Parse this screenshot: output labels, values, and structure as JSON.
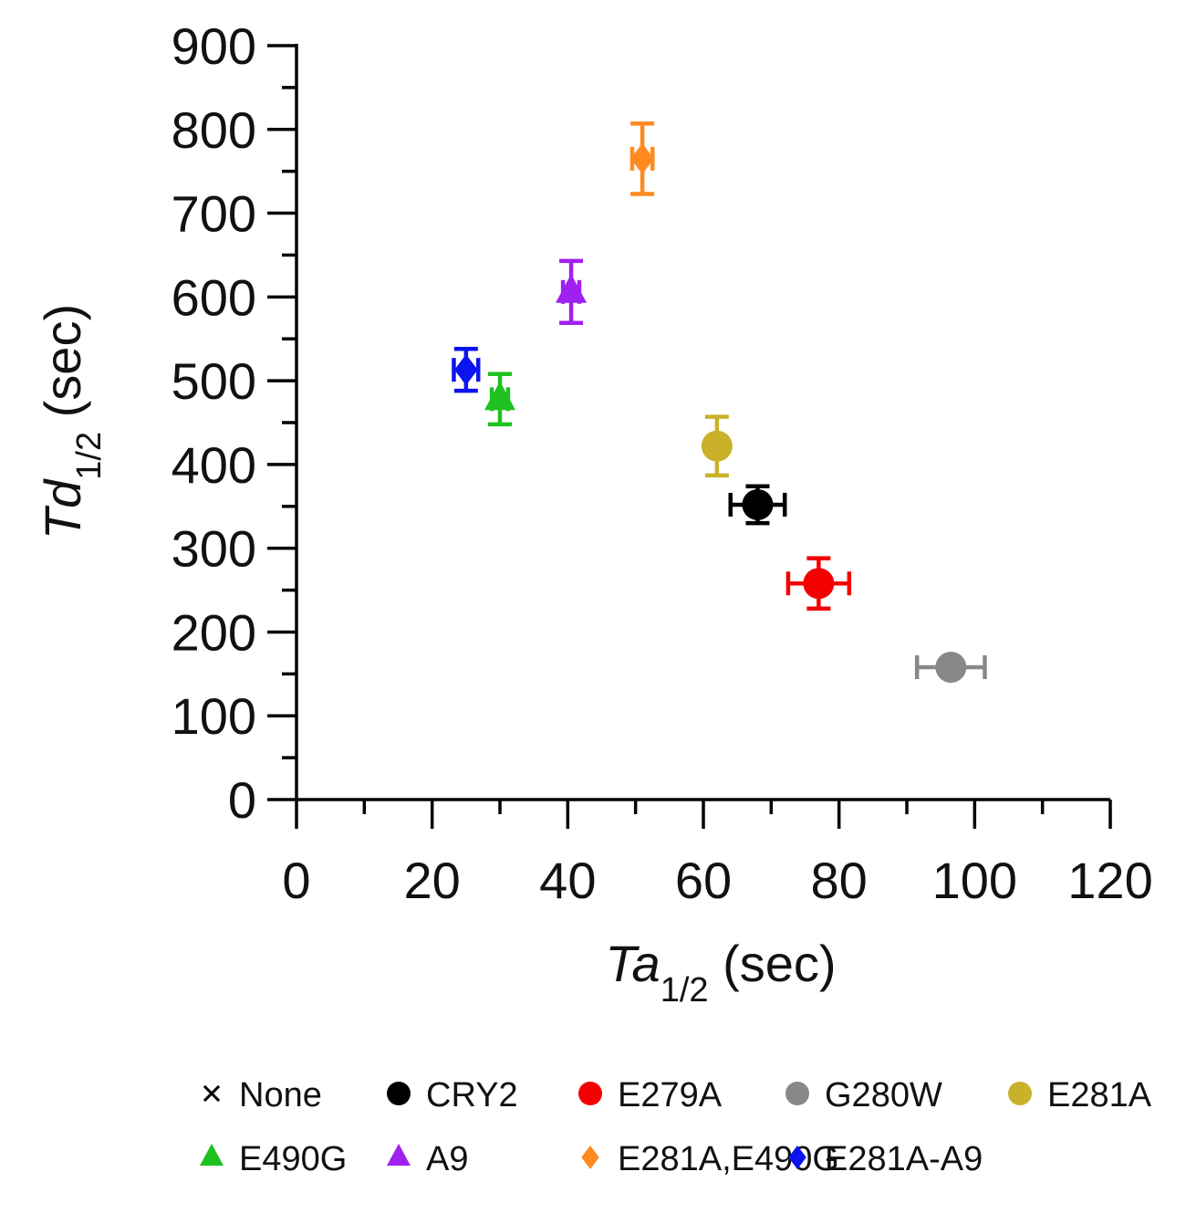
{
  "chart_data": {
    "type": "scatter",
    "xlabel": {
      "base": "Ta",
      "sub": "1/2",
      "unit": " (sec)"
    },
    "ylabel": {
      "base": "Td",
      "sub": "1/2",
      "unit": " (sec)"
    },
    "xlim": [
      0,
      120
    ],
    "ylim": [
      0,
      900
    ],
    "x_ticks": [
      "0",
      "20",
      "40",
      "60",
      "80",
      "100",
      "120"
    ],
    "y_ticks": [
      "0",
      "100",
      "200",
      "300",
      "400",
      "500",
      "600",
      "700",
      "800",
      "900"
    ],
    "grid": false,
    "legend_position": "bottom",
    "series": [
      {
        "name": "None",
        "marker": "x",
        "color": "#000000",
        "points": []
      },
      {
        "name": "CRY2",
        "marker": "circle",
        "color": "#000000",
        "points": [
          {
            "x": 68,
            "y": 352,
            "xerr": 4,
            "yerr": 22
          }
        ]
      },
      {
        "name": "E279A",
        "marker": "circle",
        "color": "#f40000",
        "points": [
          {
            "x": 77,
            "y": 258,
            "xerr": 4.5,
            "yerr": 30
          }
        ]
      },
      {
        "name": "G280W",
        "marker": "circle",
        "color": "#888888",
        "points": [
          {
            "x": 96.5,
            "y": 158,
            "xerr": 5,
            "yerr": 0
          }
        ]
      },
      {
        "name": "E281A",
        "marker": "circle",
        "color": "#c9b22a",
        "points": [
          {
            "x": 62,
            "y": 422,
            "xerr": 1.2,
            "yerr": 35
          }
        ]
      },
      {
        "name": "E490G",
        "marker": "triangle",
        "color": "#1fc11f",
        "points": [
          {
            "x": 30,
            "y": 478,
            "xerr": 1.2,
            "yerr": 30
          }
        ]
      },
      {
        "name": "A9",
        "marker": "triangle",
        "color": "#a020f0",
        "points": [
          {
            "x": 40.5,
            "y": 606,
            "xerr": 1.2,
            "yerr": 37
          }
        ]
      },
      {
        "name": "E281A,E490G",
        "marker": "diamond",
        "color": "#ff8a1f",
        "points": [
          {
            "x": 51,
            "y": 765,
            "xerr": 1.5,
            "yerr": 42
          }
        ]
      },
      {
        "name": "E281A-A9",
        "marker": "diamond",
        "color": "#0a14f0",
        "points": [
          {
            "x": 25,
            "y": 513,
            "xerr": 1.8,
            "yerr": 25
          }
        ]
      }
    ]
  }
}
